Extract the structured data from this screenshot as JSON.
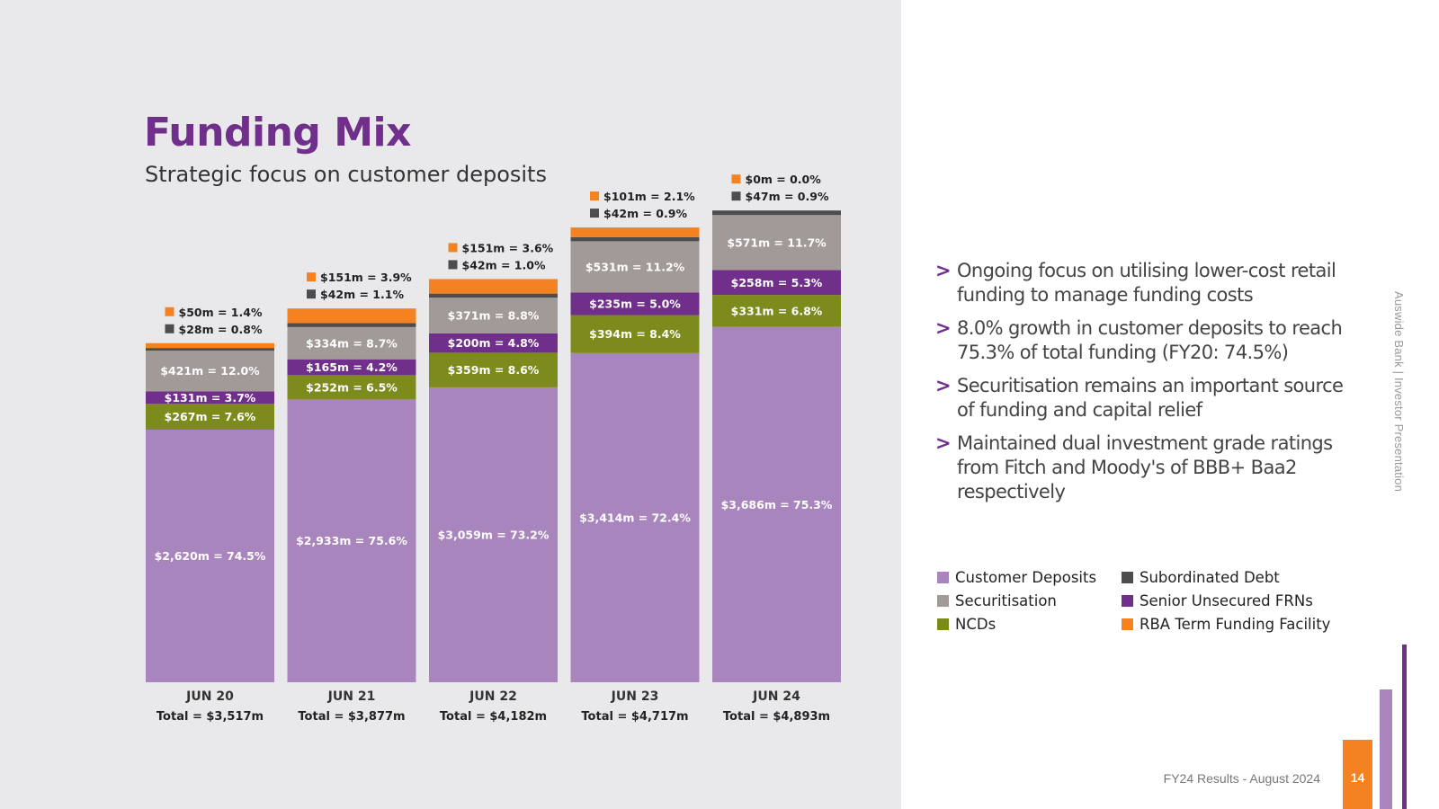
{
  "header": {
    "title": "Funding Mix",
    "subtitle": "Strategic focus on customer deposits"
  },
  "bullets": [
    "Ongoing focus on utilising lower-cost retail funding to manage funding costs",
    "8.0% growth in customer deposits to reach 75.3% of total funding (FY20: 74.5%)",
    "Securitisation remains an important source of funding and capital relief",
    "Maintained dual investment grade ratings from Fitch and Moody's of BBB+ Baa2 respectively"
  ],
  "bullet_marker": ">",
  "legend": [
    {
      "label": "Customer Deposits",
      "color": "#a985bd"
    },
    {
      "label": "Subordinated Debt",
      "color": "#4d4d4f"
    },
    {
      "label": "Securitisation",
      "color": "#a19a97"
    },
    {
      "label": "Senior Unsecured FRNs",
      "color": "#702f8a"
    },
    {
      "label": "NCDs",
      "color": "#7d8b1d"
    },
    {
      "label": "RBA Term Funding Facility",
      "color": "#f58220"
    }
  ],
  "footer": {
    "side_text": "Auswide Bank  |  Investor Presentation",
    "presentation": "FY24 Results - August 2024",
    "page_number": "14"
  },
  "chart_data": {
    "type": "bar",
    "stacked": true,
    "title": "Funding Mix",
    "categories": [
      "JUN 20",
      "JUN 21",
      "JUN 22",
      "JUN 23",
      "JUN 24"
    ],
    "totals": [
      3517,
      3877,
      4182,
      4717,
      4893
    ],
    "total_labels": [
      "Total = $3,517m",
      "Total = $3,877m",
      "Total = $4,182m",
      "Total = $4,717m",
      "Total = $4,893m"
    ],
    "series": [
      {
        "name": "Customer Deposits",
        "color": "#a985bd",
        "values": [
          2620,
          2933,
          3059,
          3414,
          3686
        ],
        "labels": [
          "$2,620m = 74.5%",
          "$2,933m = 75.6%",
          "$3,059m = 73.2%",
          "$3,414m = 72.4%",
          "$3,686m = 75.3%"
        ]
      },
      {
        "name": "NCDs",
        "color": "#7d8b1d",
        "values": [
          267,
          252,
          359,
          394,
          331
        ],
        "labels": [
          "$267m = 7.6%",
          "$252m = 6.5%",
          "$359m = 8.6%",
          "$394m = 8.4%",
          "$331m = 6.8%"
        ]
      },
      {
        "name": "Senior Unsecured FRNs",
        "color": "#702f8a",
        "values": [
          131,
          165,
          200,
          235,
          258
        ],
        "labels": [
          "$131m = 3.7%",
          "$165m = 4.2%",
          "$200m = 4.8%",
          "$235m = 5.0%",
          "$258m = 5.3%"
        ]
      },
      {
        "name": "Securitisation",
        "color": "#a19a97",
        "values": [
          421,
          334,
          371,
          531,
          571
        ],
        "labels": [
          "$421m = 12.0%",
          "$334m = 8.7%",
          "$371m = 8.8%",
          "$531m = 11.2%",
          "$571m = 11.7%"
        ]
      },
      {
        "name": "Subordinated Debt",
        "color": "#4d4d4f",
        "values": [
          28,
          42,
          42,
          42,
          47
        ],
        "labels": [
          "$28m = 0.8%",
          "$42m = 1.1%",
          "$42m = 1.0%",
          "$42m = 0.9%",
          "$47m = 0.9%"
        ]
      },
      {
        "name": "RBA Term Funding Facility",
        "color": "#f58220",
        "values": [
          50,
          151,
          151,
          101,
          0
        ],
        "labels": [
          "$50m = 1.4%",
          "$151m = 3.9%",
          "$151m = 3.6%",
          "$101m = 2.1%",
          "$0m = 0.0%"
        ]
      }
    ],
    "ylim": [
      0,
      4893
    ]
  }
}
